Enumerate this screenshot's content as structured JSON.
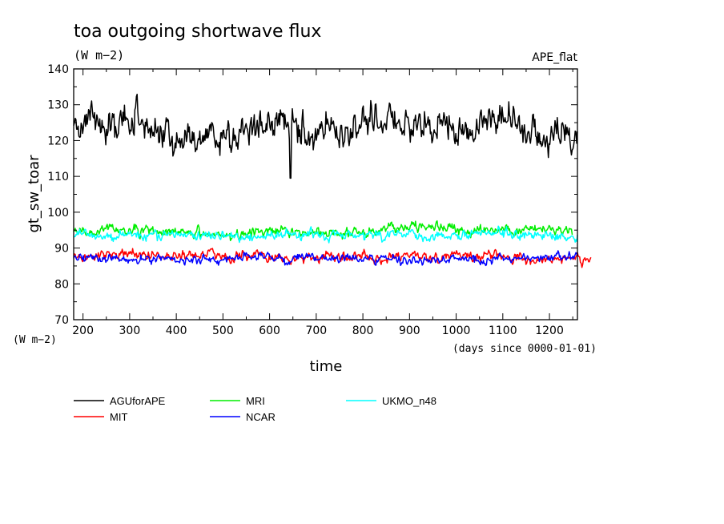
{
  "chart_data": {
    "type": "line",
    "title": "toa outgoing shortwave flux",
    "subtitle": "(W m−2)",
    "experiment": "APE_flat",
    "ylabel": "gt_sw_toar",
    "y_unit": "(W m−2)",
    "xlabel": "time",
    "x_unit": "(days since 0000-01-01)",
    "xlim": [
      180,
      1260
    ],
    "ylim": [
      70,
      140
    ],
    "x_ticks": [
      200,
      300,
      400,
      500,
      600,
      700,
      800,
      900,
      1000,
      1100,
      1200
    ],
    "y_ticks": [
      70,
      80,
      90,
      100,
      110,
      120,
      130,
      140
    ],
    "grid": false,
    "legend_position": "bottom",
    "series": [
      {
        "name": "AGUforAPE",
        "color": "#000000",
        "x_start": 180,
        "x_end": 1260,
        "mean": 124.5,
        "amplitude": 5.5,
        "min": 109.5,
        "max": 135.5
      },
      {
        "name": "MIT",
        "color": "#ff0000",
        "x_start": 180,
        "x_end": 1290,
        "mean": 87.5,
        "amplitude": 1.6,
        "min": 84,
        "max": 91
      },
      {
        "name": "MRI",
        "color": "#00ee00",
        "x_start": 180,
        "x_end": 1250,
        "mean": 94.5,
        "amplitude": 1.6,
        "min": 91,
        "max": 99
      },
      {
        "name": "NCAR",
        "color": "#0000ff",
        "x_start": 180,
        "x_end": 1260,
        "mean": 86.8,
        "amplitude": 1.3,
        "min": 83,
        "max": 91
      },
      {
        "name": "UKMO_n48",
        "color": "#00ffff",
        "x_start": 180,
        "x_end": 1260,
        "mean": 93.5,
        "amplitude": 1.5,
        "min": 90,
        "max": 97
      }
    ]
  }
}
